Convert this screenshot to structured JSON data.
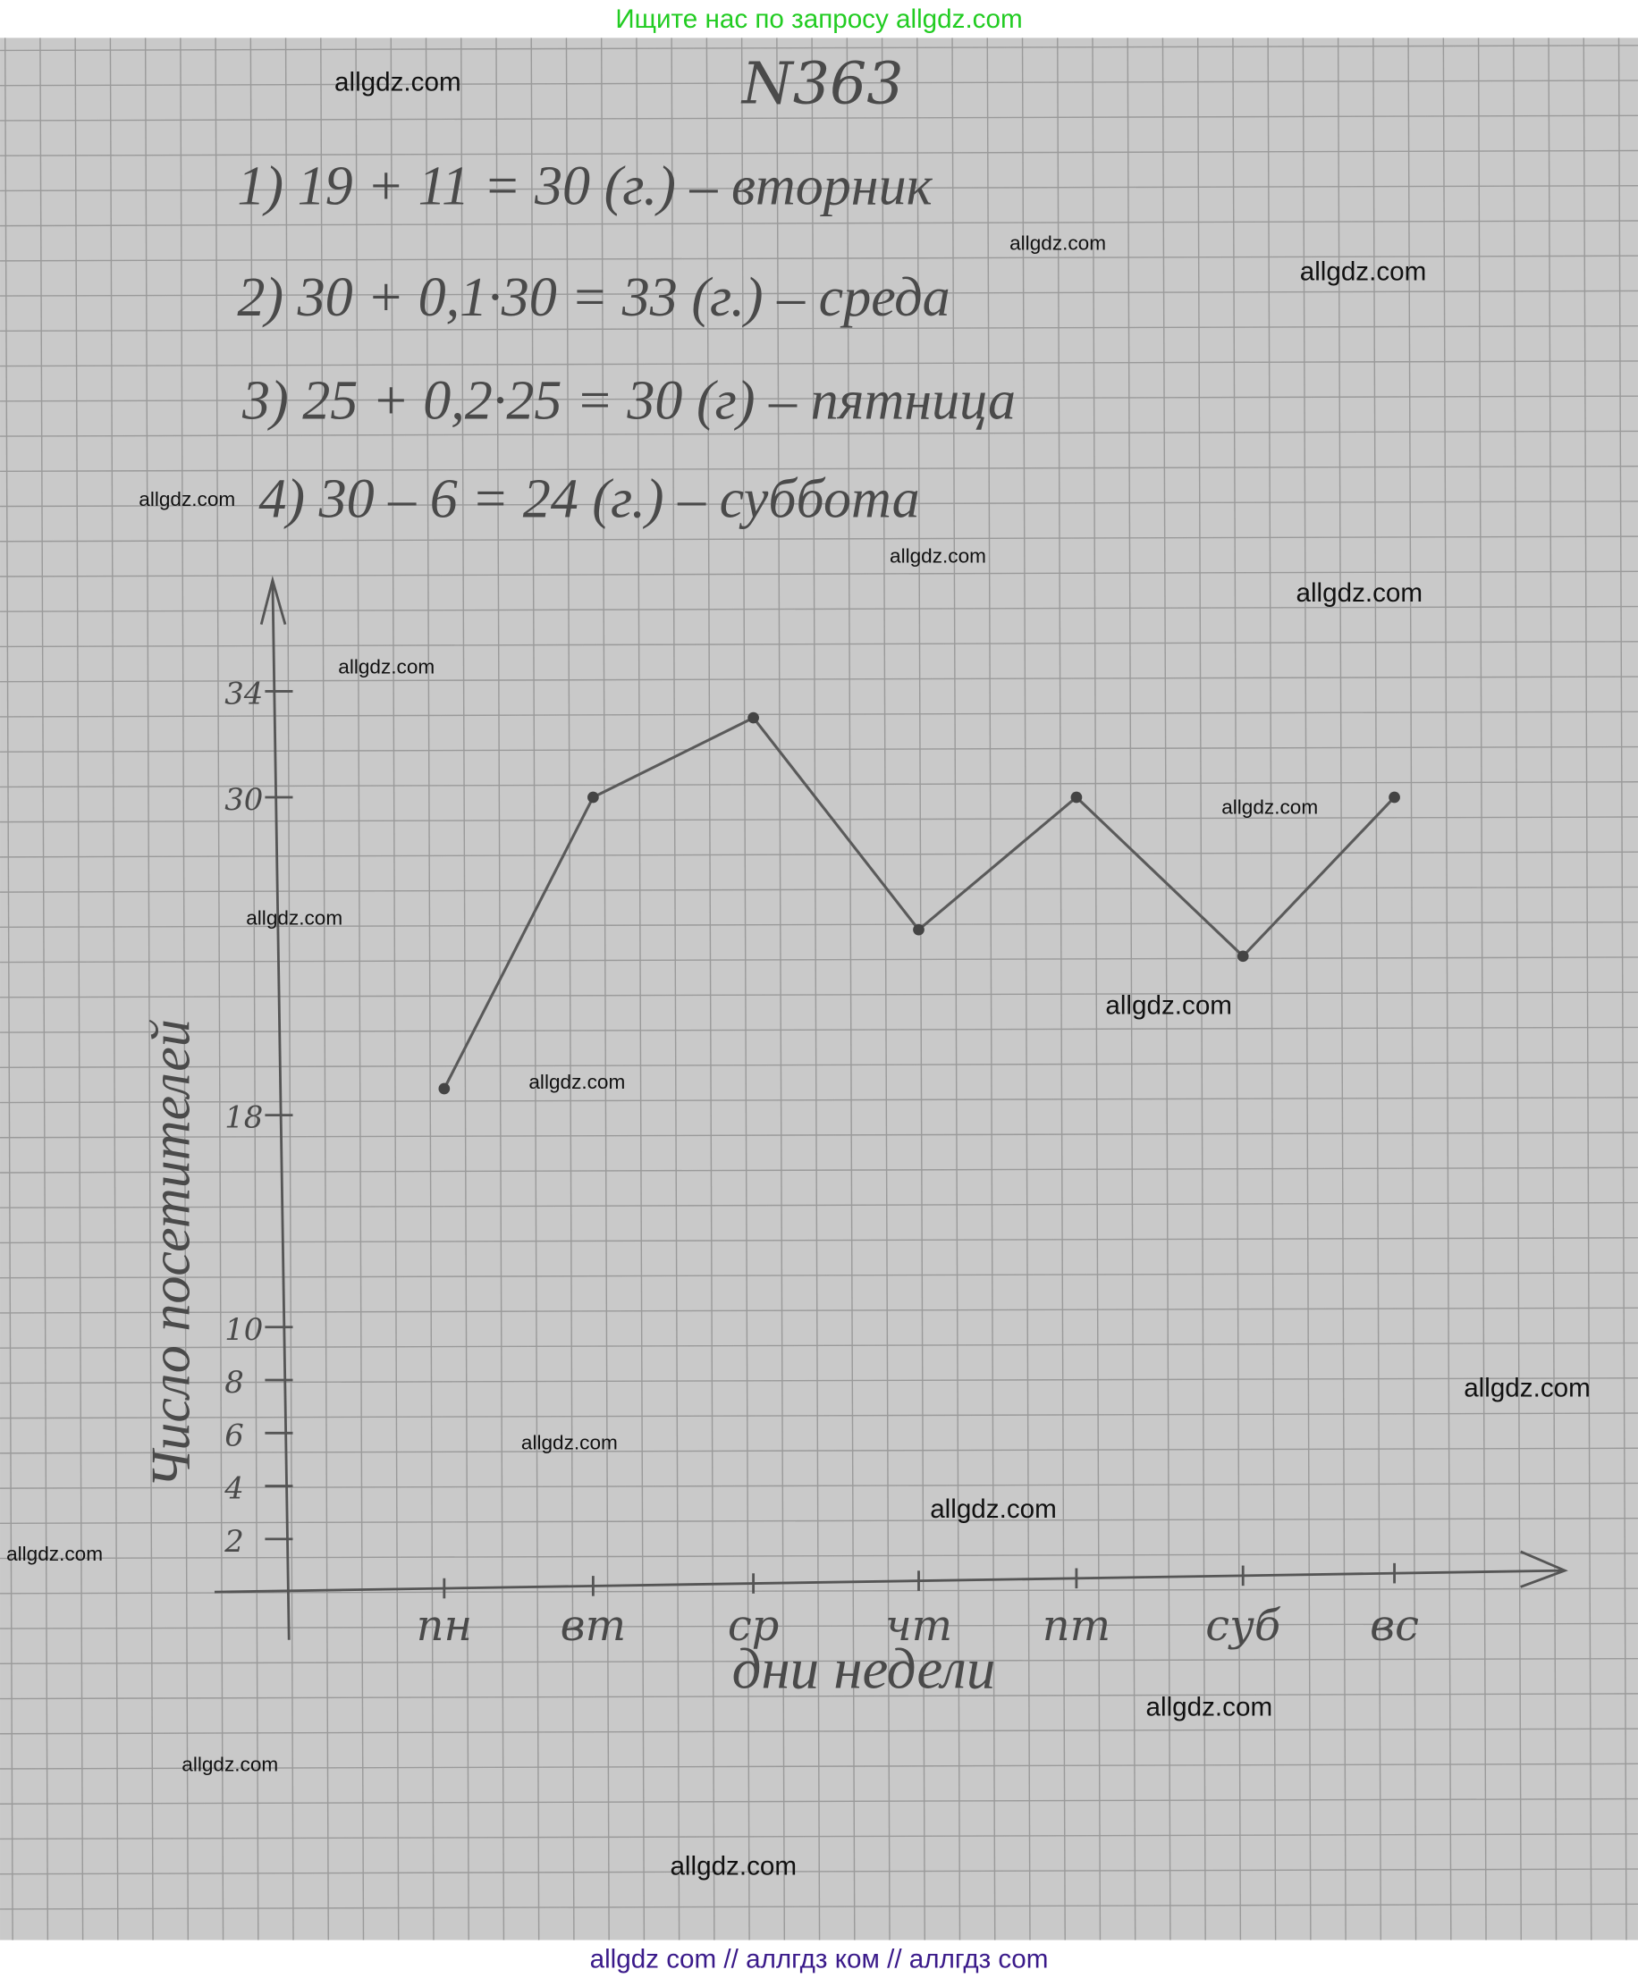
{
  "header": {
    "banner": "Ищите нас по запросу allgdz.com",
    "banner_color": "#22cc22"
  },
  "footer": {
    "text": "allgdz com  //  аллгдз ком  //  аллгдз com",
    "color": "#3a1a8a"
  },
  "notebook": {
    "title": "N363",
    "lines": [
      "1)  19 + 11 = 30 (г.) – вторник",
      "2)  30 + 0,1·30  = 33 (г.) – среда",
      "3)  25 + 0,2·25 =  30 (г) – пятница",
      "4)  30 – 6 = 24 (г.) – суббота"
    ]
  },
  "watermarks": [
    "allgdz.com",
    "allgdz.com",
    "allgdz.com",
    "allgdz.com",
    "allgdz.com",
    "allgdz.com",
    "allgdz.com",
    "allgdz.com",
    "allgdz.com",
    "allgdz.com",
    "allgdz.com",
    "allgdz.com",
    "allgdz.com",
    "allgdz.com",
    "allgdz.com",
    "allgdz.com",
    "allgdz.com",
    "allgdz.com"
  ],
  "chart_data": {
    "type": "line",
    "title": "",
    "xlabel": "дни недели",
    "ylabel": "Число посетителей",
    "categories": [
      "пн",
      "вт",
      "ср",
      "чт",
      "пт",
      "суб",
      "вс"
    ],
    "values": [
      19,
      30,
      33,
      25,
      30,
      24,
      30
    ],
    "yticks": [
      "2",
      "4",
      "6",
      "8",
      "10",
      "18",
      "30",
      "34"
    ],
    "ytick_values": [
      2,
      4,
      6,
      8,
      10,
      18,
      30,
      34
    ],
    "ylim": [
      0,
      36
    ],
    "grid": true,
    "line_color": "#5a5a5a"
  }
}
